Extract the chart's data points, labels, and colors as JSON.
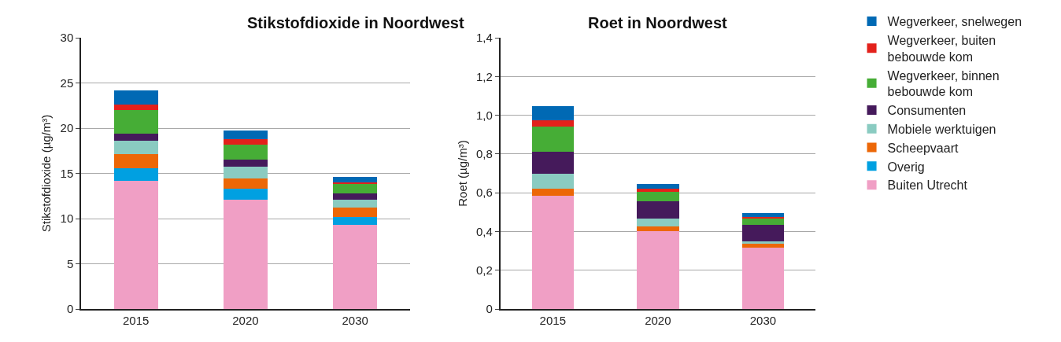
{
  "chart_data": [
    {
      "type": "bar",
      "title": "Stikstofdioxide in Noordwest",
      "ylabel": "Stikstofdioxide (µg/m³)",
      "categories": [
        "2015",
        "2020",
        "2030"
      ],
      "stacked": true,
      "ylim": [
        0,
        30
      ],
      "yticks": [
        0,
        5,
        10,
        15,
        20,
        25,
        30
      ],
      "grid": "y",
      "legend": "right",
      "series": [
        {
          "name": "Buiten Utrecht",
          "color": "#f09fc5",
          "values": [
            14.2,
            12.1,
            9.3
          ]
        },
        {
          "name": "Overig",
          "color": "#00a0e1",
          "values": [
            1.4,
            1.2,
            0.9
          ]
        },
        {
          "name": "Scheepvaart",
          "color": "#ec6707",
          "values": [
            1.5,
            1.1,
            1.0
          ]
        },
        {
          "name": "Mobiele werktuigen",
          "color": "#8acbc1",
          "values": [
            1.5,
            1.3,
            0.9
          ]
        },
        {
          "name": "Consumenten",
          "color": "#451a5b",
          "values": [
            0.8,
            0.8,
            0.7
          ]
        },
        {
          "name": "Wegverkeer, binnen bebouwde kom",
          "color": "#46ad36",
          "values": [
            2.6,
            1.7,
            1.0
          ]
        },
        {
          "name": "Wegverkeer, buiten bebouwde kom",
          "color": "#e3211b",
          "values": [
            0.6,
            0.6,
            0.2
          ]
        },
        {
          "name": "Wegverkeer, snelwegen",
          "color": "#0069b4",
          "values": [
            1.6,
            0.9,
            0.6
          ]
        }
      ]
    },
    {
      "type": "bar",
      "title": "Roet in Noordwest",
      "ylabel": "Roet (µg/m³)",
      "categories": [
        "2015",
        "2020",
        "2030"
      ],
      "stacked": true,
      "ylim": [
        0,
        1.4
      ],
      "yticks": [
        0,
        {
          "value": 0.2,
          "label": "0,2"
        },
        {
          "value": 0.4,
          "label": "0,4"
        },
        {
          "value": 0.6,
          "label": "0,6"
        },
        {
          "value": 0.8,
          "label": "0,8"
        },
        {
          "value": 1.0,
          "label": "1,0"
        },
        {
          "value": 1.2,
          "label": "1,2"
        },
        {
          "value": 1.4,
          "label": "1,4"
        }
      ],
      "grid": "y",
      "series": [
        {
          "color": "#f09fc5",
          "values": [
            0.585,
            0.4,
            0.315
          ]
        },
        {
          "color": "#00a0e1",
          "values": [
            0,
            0,
            0
          ]
        },
        {
          "color": "#ec6707",
          "values": [
            0.035,
            0.025,
            0.02
          ]
        },
        {
          "color": "#8acbc1",
          "values": [
            0.08,
            0.04,
            0.015
          ]
        },
        {
          "color": "#451a5b",
          "values": [
            0.11,
            0.09,
            0.085
          ]
        },
        {
          "color": "#46ad36",
          "values": [
            0.13,
            0.05,
            0.035
          ]
        },
        {
          "color": "#e3211b",
          "values": [
            0.035,
            0.015,
            0.005
          ]
        },
        {
          "color": "#0069b4",
          "values": [
            0.07,
            0.025,
            0.02
          ]
        }
      ]
    }
  ]
}
